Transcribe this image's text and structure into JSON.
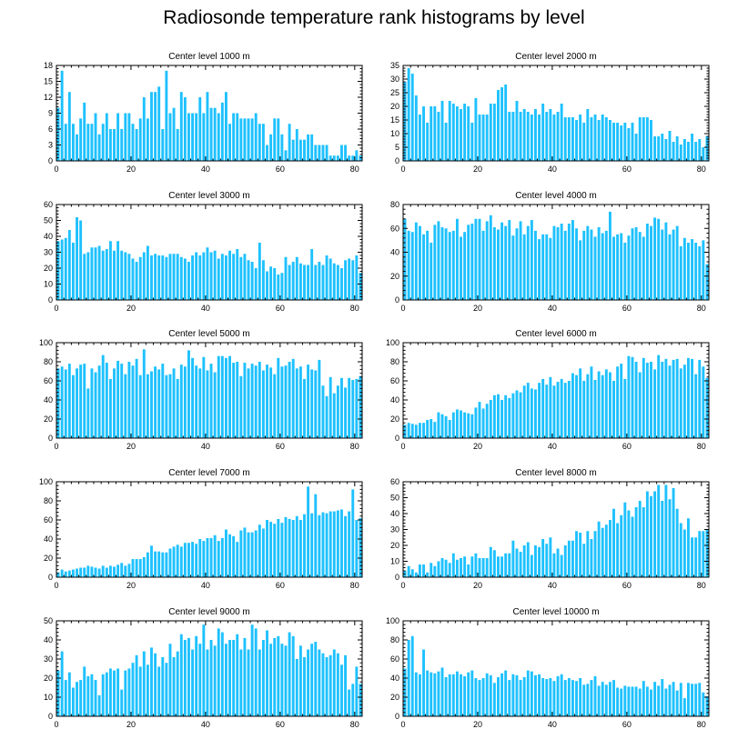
{
  "figure_title": "Radiosonde temperature rank histograms by level",
  "bar_color": "#1ec1ff",
  "chart_data": [
    {
      "type": "bar",
      "title": "Center level 1000 m",
      "xlim": [
        0,
        82
      ],
      "ylim": [
        0,
        18
      ],
      "xticks": [
        0,
        20,
        40,
        60,
        80
      ],
      "yticks": [
        0,
        3,
        6,
        9,
        12,
        15,
        18
      ],
      "values": [
        10,
        17,
        7,
        13,
        7,
        5,
        8,
        11,
        7,
        7,
        9,
        5,
        7,
        9,
        6,
        6,
        9,
        6,
        9,
        9,
        7,
        6,
        8,
        12,
        8,
        13,
        13,
        14,
        6,
        17,
        9,
        10,
        6,
        13,
        12,
        9,
        9,
        9,
        12,
        9,
        13,
        10,
        10,
        9,
        11,
        13,
        7,
        9,
        9,
        8,
        8,
        8,
        8,
        9,
        7,
        7,
        3,
        5,
        8,
        8,
        5,
        2,
        7,
        4,
        6,
        4,
        4,
        5,
        5,
        3,
        3,
        3,
        3,
        1,
        1,
        1,
        3,
        3,
        1,
        1,
        2,
        1
      ]
    },
    {
      "type": "bar",
      "title": "Center level 2000 m",
      "xlim": [
        0,
        82
      ],
      "ylim": [
        0,
        35
      ],
      "xticks": [
        0,
        20,
        40,
        60,
        80
      ],
      "yticks": [
        0,
        5,
        10,
        15,
        20,
        25,
        30,
        35
      ],
      "values": [
        29,
        34,
        32,
        24,
        17,
        20,
        14,
        20,
        20,
        18,
        22,
        14,
        22,
        21,
        20,
        19,
        21,
        20,
        14,
        23,
        17,
        17,
        17,
        21,
        21,
        26,
        27,
        28,
        18,
        18,
        22,
        18,
        19,
        18,
        17,
        19,
        17,
        21,
        18,
        19,
        17,
        18,
        21,
        16,
        16,
        16,
        15,
        17,
        14,
        19,
        16,
        17,
        15,
        17,
        16,
        15,
        14,
        14,
        13,
        14,
        12,
        14,
        10,
        16,
        16,
        16,
        15,
        9,
        9,
        10,
        8,
        11,
        7,
        9,
        6,
        8,
        7,
        10,
        7,
        8,
        5,
        9
      ]
    },
    {
      "type": "bar",
      "title": "Center level 3000 m",
      "xlim": [
        0,
        82
      ],
      "ylim": [
        0,
        60
      ],
      "xticks": [
        0,
        20,
        40,
        60,
        80
      ],
      "yticks": [
        0,
        10,
        20,
        30,
        40,
        50,
        60
      ],
      "values": [
        37,
        38,
        39,
        44,
        36,
        52,
        50,
        29,
        30,
        33,
        33,
        34,
        31,
        32,
        37,
        31,
        37,
        31,
        30,
        29,
        26,
        24,
        27,
        30,
        34,
        28,
        29,
        28,
        28,
        27,
        29,
        29,
        29,
        27,
        26,
        24,
        28,
        30,
        28,
        30,
        33,
        30,
        31,
        26,
        29,
        28,
        31,
        29,
        32,
        27,
        29,
        25,
        24,
        20,
        36,
        25,
        18,
        21,
        20,
        16,
        17,
        27,
        22,
        24,
        27,
        23,
        22,
        22,
        32,
        22,
        24,
        22,
        28,
        26,
        23,
        22,
        20,
        25,
        26,
        25,
        28,
        17
      ]
    },
    {
      "type": "bar",
      "title": "Center level 4000 m",
      "xlim": [
        0,
        82
      ],
      "ylim": [
        0,
        80
      ],
      "xticks": [
        0,
        20,
        40,
        60,
        80
      ],
      "yticks": [
        0,
        20,
        40,
        60,
        80
      ],
      "values": [
        68,
        58,
        57,
        65,
        62,
        55,
        58,
        48,
        63,
        66,
        61,
        60,
        57,
        58,
        68,
        53,
        57,
        63,
        64,
        68,
        68,
        58,
        66,
        71,
        61,
        59,
        65,
        62,
        67,
        54,
        60,
        66,
        55,
        62,
        67,
        58,
        51,
        55,
        55,
        52,
        62,
        61,
        64,
        58,
        64,
        67,
        60,
        50,
        58,
        62,
        59,
        53,
        61,
        56,
        58,
        74,
        53,
        55,
        56,
        48,
        54,
        60,
        61,
        57,
        53,
        64,
        62,
        69,
        68,
        59,
        65,
        55,
        59,
        62,
        45,
        52,
        48,
        51,
        48,
        45,
        50,
        30
      ]
    },
    {
      "type": "bar",
      "title": "Center level 5000 m",
      "xlim": [
        0,
        82
      ],
      "ylim": [
        0,
        100
      ],
      "xticks": [
        0,
        20,
        40,
        60,
        80
      ],
      "yticks": [
        0,
        20,
        40,
        60,
        80,
        100
      ],
      "values": [
        73,
        75,
        72,
        78,
        66,
        73,
        77,
        78,
        52,
        73,
        69,
        76,
        87,
        79,
        62,
        73,
        81,
        78,
        67,
        80,
        76,
        83,
        66,
        93,
        67,
        70,
        75,
        72,
        78,
        66,
        67,
        73,
        62,
        77,
        75,
        92,
        84,
        76,
        73,
        85,
        71,
        78,
        69,
        86,
        86,
        84,
        86,
        79,
        80,
        65,
        79,
        73,
        78,
        76,
        80,
        71,
        77,
        74,
        67,
        84,
        75,
        76,
        80,
        83,
        73,
        75,
        62,
        77,
        72,
        71,
        82,
        55,
        44,
        64,
        47,
        55,
        63,
        53,
        63,
        61,
        62,
        65
      ]
    },
    {
      "type": "bar",
      "title": "Center level 6000 m",
      "xlim": [
        0,
        82
      ],
      "ylim": [
        0,
        100
      ],
      "xticks": [
        0,
        20,
        40,
        60,
        80
      ],
      "yticks": [
        0,
        20,
        40,
        60,
        80,
        100
      ],
      "values": [
        14,
        16,
        15,
        14,
        16,
        16,
        19,
        20,
        17,
        27,
        25,
        23,
        19,
        27,
        30,
        29,
        27,
        26,
        25,
        32,
        38,
        31,
        36,
        40,
        45,
        46,
        40,
        45,
        42,
        47,
        50,
        48,
        55,
        58,
        52,
        51,
        58,
        62,
        56,
        64,
        55,
        59,
        62,
        58,
        60,
        68,
        66,
        73,
        60,
        67,
        75,
        61,
        70,
        66,
        72,
        69,
        60,
        75,
        78,
        62,
        86,
        85,
        80,
        69,
        84,
        79,
        80,
        72,
        87,
        80,
        83,
        76,
        82,
        83,
        73,
        77,
        84,
        83,
        67,
        82,
        75,
        63
      ]
    },
    {
      "type": "bar",
      "title": "Center level 7000 m",
      "xlim": [
        0,
        82
      ],
      "ylim": [
        0,
        100
      ],
      "xticks": [
        0,
        20,
        40,
        60,
        80
      ],
      "yticks": [
        0,
        20,
        40,
        60,
        80,
        100
      ],
      "values": [
        5,
        8,
        6,
        7,
        8,
        9,
        10,
        10,
        12,
        11,
        10,
        9,
        12,
        10,
        12,
        11,
        13,
        15,
        12,
        14,
        19,
        19,
        19,
        21,
        26,
        33,
        27,
        27,
        26,
        26,
        30,
        32,
        34,
        32,
        36,
        36,
        37,
        35,
        40,
        38,
        41,
        41,
        44,
        38,
        41,
        50,
        45,
        43,
        37,
        49,
        52,
        47,
        47,
        49,
        55,
        51,
        60,
        58,
        56,
        61,
        57,
        63,
        61,
        60,
        64,
        60,
        66,
        95,
        67,
        87,
        65,
        68,
        67,
        69,
        69,
        70,
        71,
        64,
        69,
        92,
        60,
        62
      ]
    },
    {
      "type": "bar",
      "title": "Center level 8000 m",
      "xlim": [
        0,
        82
      ],
      "ylim": [
        0,
        60
      ],
      "xticks": [
        0,
        20,
        40,
        60,
        80
      ],
      "yticks": [
        0,
        10,
        20,
        30,
        40,
        50,
        60
      ],
      "values": [
        4,
        7,
        5,
        3,
        8,
        8,
        3,
        9,
        7,
        10,
        12,
        11,
        9,
        15,
        11,
        12,
        13,
        8,
        13,
        15,
        12,
        12,
        12,
        19,
        17,
        13,
        13,
        15,
        15,
        23,
        18,
        16,
        20,
        22,
        14,
        20,
        19,
        24,
        21,
        25,
        15,
        18,
        14,
        20,
        23,
        23,
        29,
        28,
        21,
        29,
        24,
        29,
        35,
        31,
        33,
        36,
        43,
        34,
        39,
        47,
        42,
        38,
        44,
        48,
        44,
        54,
        51,
        54,
        58,
        48,
        58,
        49,
        56,
        43,
        34,
        30,
        37,
        25,
        25,
        29,
        29,
        30
      ]
    },
    {
      "type": "bar",
      "title": "Center level 9000 m",
      "xlim": [
        0,
        82
      ],
      "ylim": [
        0,
        50
      ],
      "xticks": [
        0,
        20,
        40,
        60,
        80
      ],
      "yticks": [
        0,
        10,
        20,
        30,
        40,
        50
      ],
      "values": [
        24,
        34,
        19,
        23,
        15,
        18,
        19,
        26,
        21,
        22,
        19,
        11,
        22,
        23,
        25,
        24,
        25,
        14,
        24,
        25,
        28,
        32,
        26,
        34,
        27,
        36,
        33,
        26,
        31,
        28,
        38,
        31,
        34,
        43,
        40,
        41,
        35,
        42,
        38,
        48,
        35,
        40,
        37,
        46,
        44,
        38,
        40,
        40,
        43,
        35,
        41,
        35,
        48,
        46,
        35,
        40,
        45,
        38,
        41,
        42,
        38,
        37,
        44,
        42,
        30,
        37,
        31,
        35,
        38,
        39,
        35,
        33,
        31,
        32,
        35,
        33,
        27,
        32,
        14,
        17,
        26,
        17
      ]
    },
    {
      "type": "bar",
      "title": "Center level 10000 m",
      "xlim": [
        0,
        82
      ],
      "ylim": [
        0,
        100
      ],
      "xticks": [
        0,
        20,
        40,
        60,
        80
      ],
      "yticks": [
        0,
        20,
        40,
        60,
        80,
        100
      ],
      "values": [
        50,
        80,
        84,
        46,
        44,
        70,
        48,
        46,
        45,
        47,
        51,
        41,
        44,
        44,
        47,
        44,
        42,
        46,
        48,
        40,
        38,
        40,
        45,
        43,
        35,
        41,
        45,
        48,
        38,
        44,
        43,
        38,
        41,
        48,
        47,
        43,
        44,
        40,
        39,
        40,
        37,
        42,
        44,
        38,
        40,
        38,
        37,
        40,
        33,
        34,
        38,
        42,
        32,
        36,
        33,
        36,
        38,
        30,
        29,
        32,
        31,
        31,
        31,
        29,
        37,
        31,
        28,
        36,
        32,
        39,
        29,
        33,
        36,
        27,
        35,
        19,
        35,
        34,
        34,
        35,
        25,
        21
      ]
    }
  ]
}
